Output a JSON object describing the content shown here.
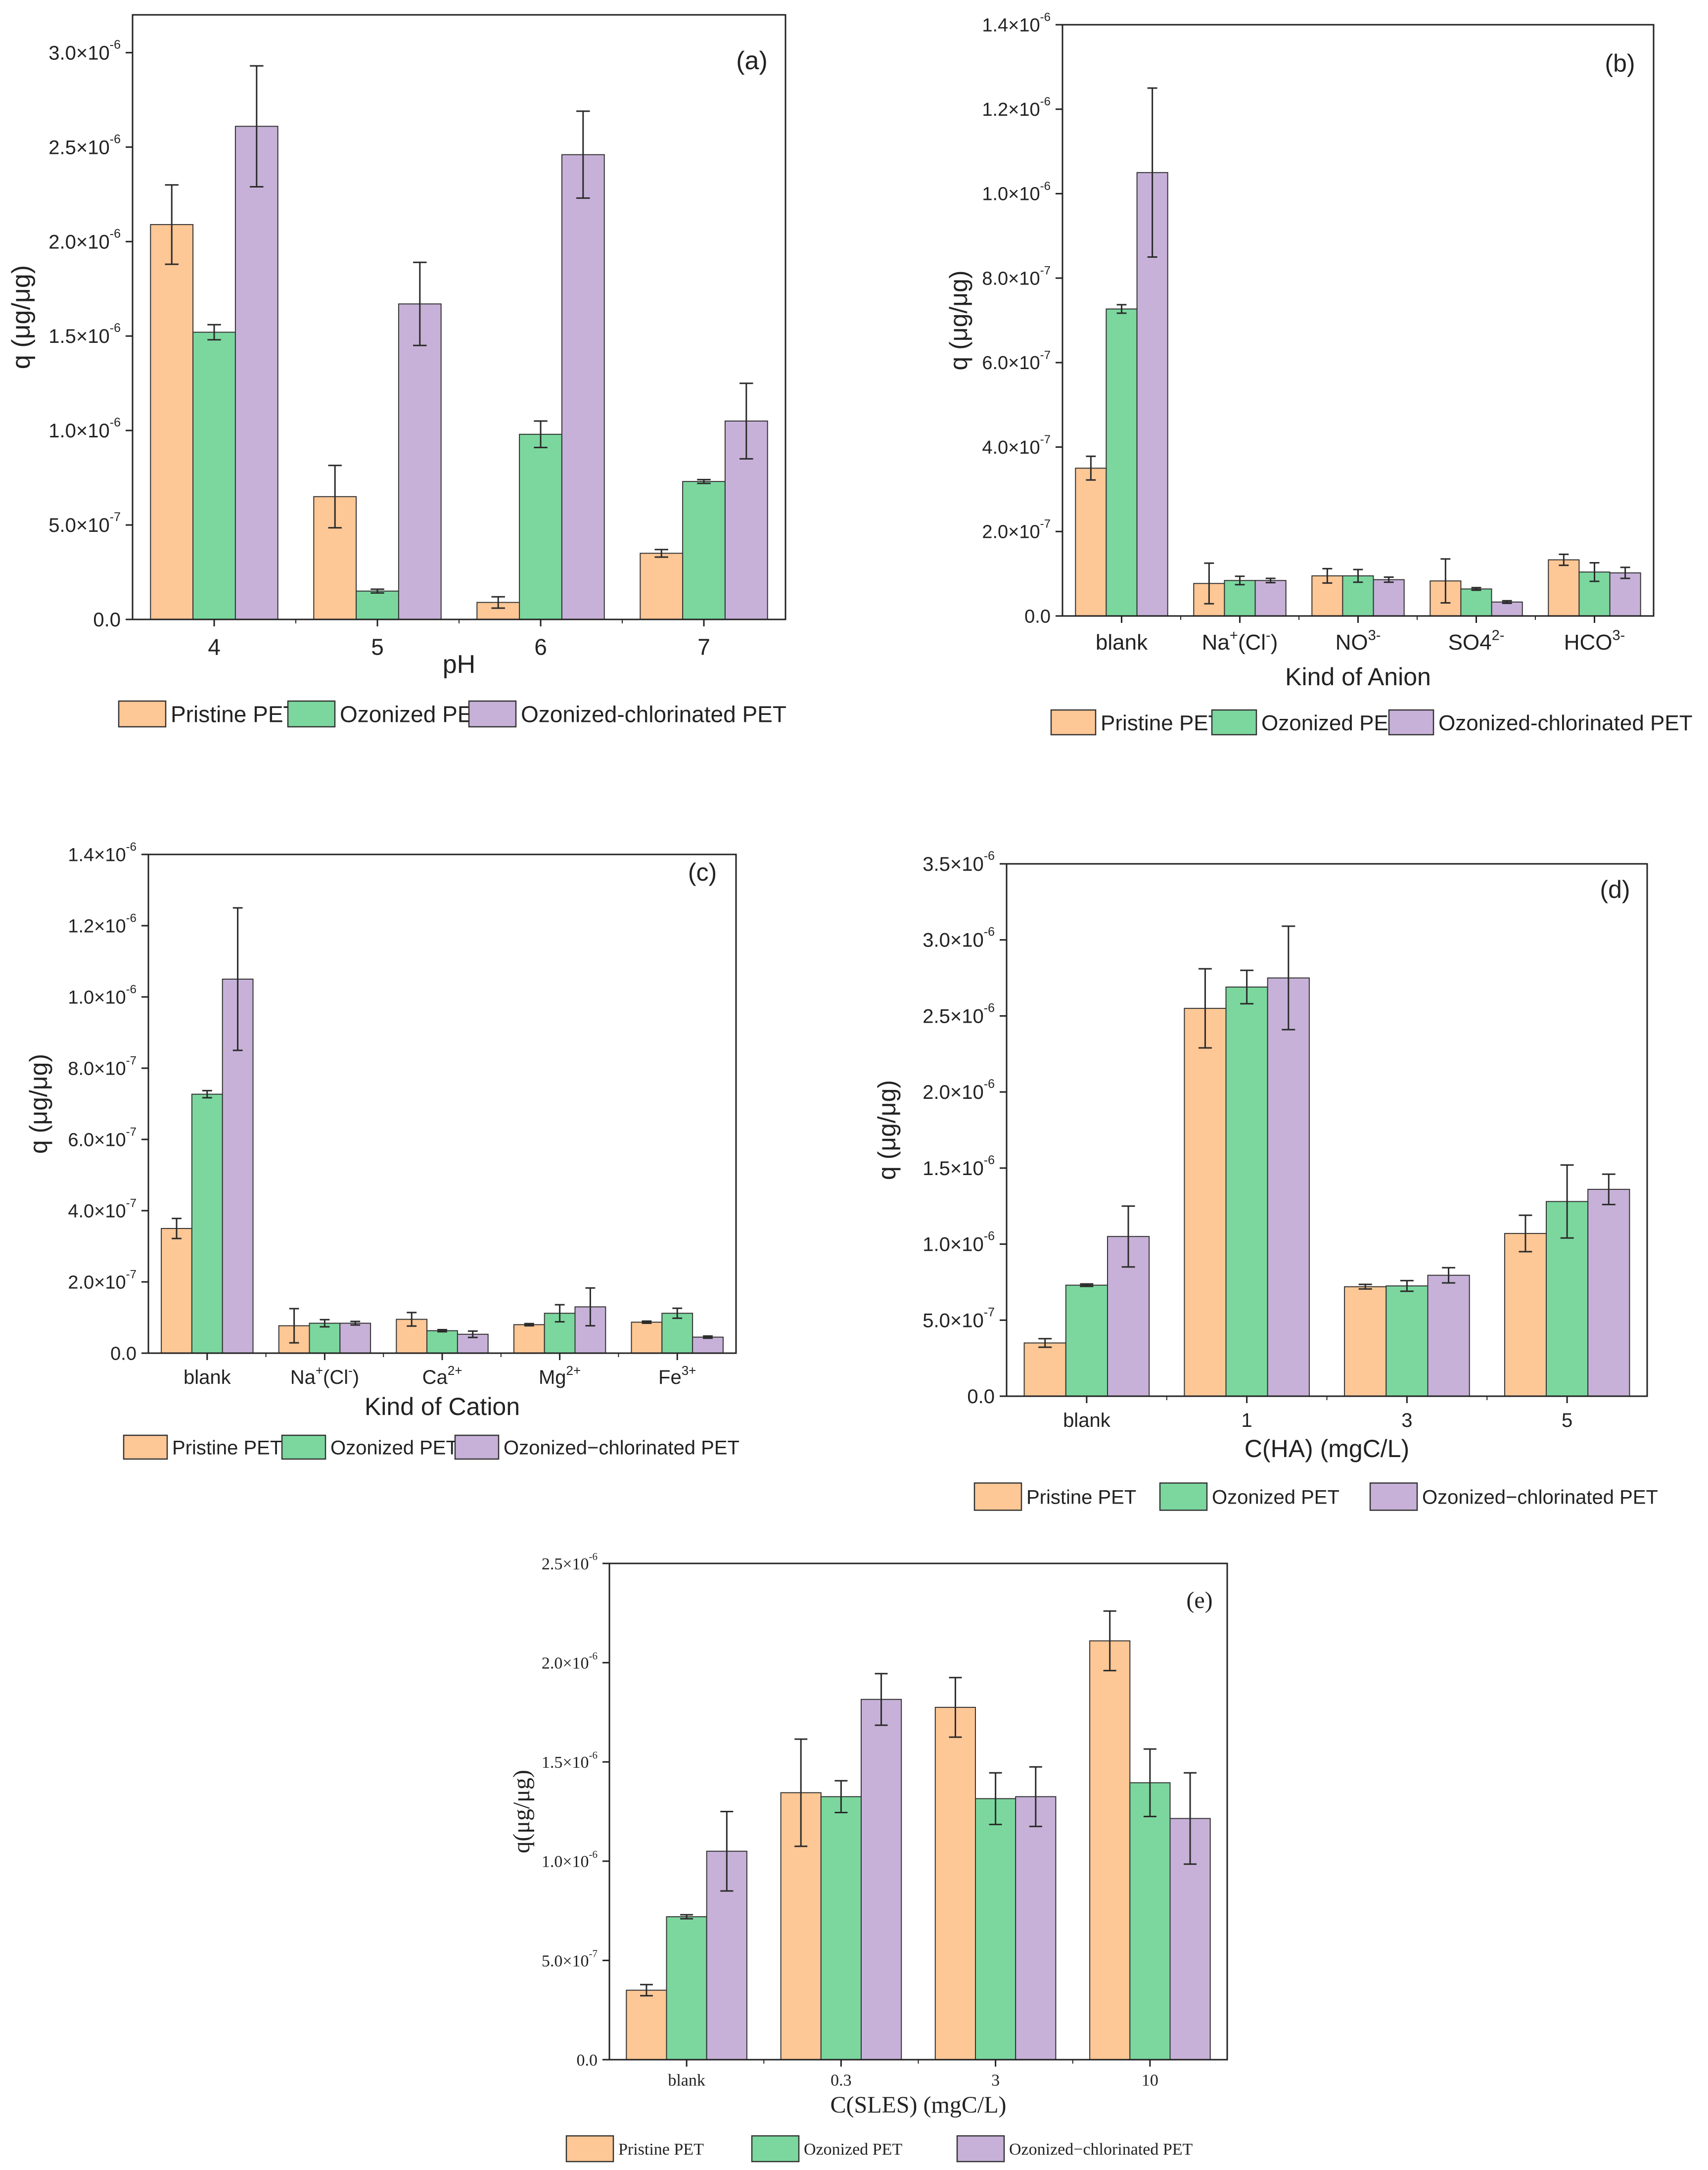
{
  "figure": {
    "series_names": [
      "Pristine PET",
      "Ozonized PET",
      "Ozonized-chlorinated PET"
    ],
    "series_names_alt": [
      "Pristine PET",
      "Ozonized PET",
      "Ozonized−chlorinated PET"
    ],
    "colors": {
      "pristine": "#FDC796",
      "ozonized": "#7BD79E",
      "chlorinated": "#C7B1D8",
      "error_bar": "#2a2a2a",
      "axis": "#222222"
    }
  },
  "chart_data": [
    {
      "id": "a",
      "type": "bar",
      "panel_label": "(a)",
      "xlabel": "pH",
      "ylabel": "q (μg/μg)",
      "categories": [
        "4",
        "5",
        "6",
        "7"
      ],
      "ylim": [
        0,
        3.2e-06
      ],
      "yticks": [
        0,
        5e-07,
        1e-06,
        1.5e-06,
        2e-06,
        2.5e-06,
        3e-06
      ],
      "ytick_labels": [
        {
          "m": "0.0",
          "e": ""
        },
        {
          "m": "5.0×10",
          "e": "-7"
        },
        {
          "m": "1.0×10",
          "e": "-6"
        },
        {
          "m": "1.5×10",
          "e": "-6"
        },
        {
          "m": "2.0×10",
          "e": "-6"
        },
        {
          "m": "2.5×10",
          "e": "-6"
        },
        {
          "m": "3.0×10",
          "e": "-6"
        }
      ],
      "series": [
        {
          "name": "Pristine PET",
          "values": [
            2.09e-06,
            6.5e-07,
            9e-08,
            3.5e-07
          ],
          "errors": [
            2.1e-07,
            1.65e-07,
            3e-08,
            2e-08
          ]
        },
        {
          "name": "Ozonized PET",
          "values": [
            1.52e-06,
            1.5e-07,
            9.8e-07,
            7.3e-07
          ],
          "errors": [
            4e-08,
            1e-08,
            7e-08,
            1e-08
          ]
        },
        {
          "name": "Ozonized-chlorinated PET",
          "values": [
            2.61e-06,
            1.67e-06,
            2.46e-06,
            1.05e-06
          ],
          "errors": [
            3.2e-07,
            2.2e-07,
            2.3e-07,
            2e-07
          ]
        }
      ]
    },
    {
      "id": "b",
      "type": "bar",
      "panel_label": "(b)",
      "xlabel": "Kind of Anion",
      "ylabel": "q (μg/μg)",
      "categories": [
        {
          "t": "blank"
        },
        {
          "t": "Na",
          "sup": "+",
          "t2": "(Cl",
          "sup2": "-",
          "t3": ")"
        },
        {
          "t": "NO",
          "sup": "3-"
        },
        {
          "t": "SO4",
          "sup": "2-"
        },
        {
          "t": "HCO",
          "sup": "3-"
        }
      ],
      "ylim": [
        0,
        1.4e-06
      ],
      "yticks": [
        0,
        2e-07,
        4e-07,
        6e-07,
        8e-07,
        1e-06,
        1.2e-06,
        1.4e-06
      ],
      "ytick_labels": [
        {
          "m": "0.0",
          "e": ""
        },
        {
          "m": "2.0×10",
          "e": "-7"
        },
        {
          "m": "4.0×10",
          "e": "-7"
        },
        {
          "m": "6.0×10",
          "e": "-7"
        },
        {
          "m": "8.0×10",
          "e": "-7"
        },
        {
          "m": "1.0×10",
          "e": "-6"
        },
        {
          "m": "1.2×10",
          "e": "-6"
        },
        {
          "m": "1.4×10",
          "e": "-6"
        }
      ],
      "series": [
        {
          "name": "Pristine PET",
          "values": [
            3.5e-07,
            7.7e-08,
            9.5e-08,
            8.3e-08,
            1.33e-07
          ],
          "errors": [
            2.8e-08,
            4.8e-08,
            1.7e-08,
            5.2e-08,
            1.3e-08
          ]
        },
        {
          "name": "Ozonized PET",
          "values": [
            7.27e-07,
            8.4e-08,
            9.5e-08,
            6.4e-08,
            1.04e-07
          ],
          "errors": [
            1e-08,
            1e-08,
            1.5e-08,
            3e-09,
            2.2e-08
          ]
        },
        {
          "name": "Ozonized-chlorinated PET",
          "values": [
            1.05e-06,
            8.4e-08,
            8.6e-08,
            3.3e-08,
            1.02e-07
          ],
          "errors": [
            2e-07,
            5e-09,
            6e-09,
            3e-09,
            1.3e-08
          ]
        }
      ]
    },
    {
      "id": "c",
      "type": "bar",
      "panel_label": "(c)",
      "xlabel": "Kind of Cation",
      "ylabel": "q (μg/μg)",
      "categories": [
        {
          "t": "blank"
        },
        {
          "t": "Na",
          "sup": "+",
          "t2": "(Cl",
          "sup2": "-",
          "t3": ")"
        },
        {
          "t": "Ca",
          "sup": "2+"
        },
        {
          "t": "Mg",
          "sup": "2+"
        },
        {
          "t": "Fe",
          "sup": "3+"
        }
      ],
      "ylim": [
        0,
        1.4e-06
      ],
      "yticks": [
        0,
        2e-07,
        4e-07,
        6e-07,
        8e-07,
        1e-06,
        1.2e-06,
        1.4e-06
      ],
      "ytick_labels": [
        {
          "m": "0.0",
          "e": ""
        },
        {
          "m": "2.0×10",
          "e": "-7"
        },
        {
          "m": "4.0×10",
          "e": "-7"
        },
        {
          "m": "6.0×10",
          "e": "-7"
        },
        {
          "m": "8.0×10",
          "e": "-7"
        },
        {
          "m": "1.0×10",
          "e": "-6"
        },
        {
          "m": "1.2×10",
          "e": "-6"
        },
        {
          "m": "1.4×10",
          "e": "-6"
        }
      ],
      "series": [
        {
          "name": "Pristine PET",
          "values": [
            3.5e-07,
            7.7e-08,
            9.5e-08,
            8e-08,
            8.7e-08
          ],
          "errors": [
            2.8e-08,
            4.8e-08,
            1.9e-08,
            3e-09,
            3e-09
          ]
        },
        {
          "name": "Ozonized PET",
          "values": [
            7.27e-07,
            8.4e-08,
            6.3e-08,
            1.12e-07,
            1.12e-07
          ],
          "errors": [
            1e-08,
            1e-08,
            3e-09,
            2.4e-08,
            1.4e-08
          ]
        },
        {
          "name": "Ozonized-chlorinated PET",
          "values": [
            1.05e-06,
            8.4e-08,
            5.3e-08,
            1.3e-07,
            4.5e-08
          ],
          "errors": [
            2e-07,
            5e-09,
            9e-09,
            5.3e-08,
            3e-09
          ]
        }
      ]
    },
    {
      "id": "d",
      "type": "bar",
      "panel_label": "(d)",
      "xlabel": "C(HA) (mgC/L)",
      "ylabel": "q (μg/μg)",
      "categories": [
        "blank",
        "1",
        "3",
        "5"
      ],
      "ylim": [
        0,
        3.5e-06
      ],
      "yticks": [
        0,
        5e-07,
        1e-06,
        1.5e-06,
        2e-06,
        2.5e-06,
        3e-06,
        3.5e-06
      ],
      "ytick_labels": [
        {
          "m": "0.0",
          "e": ""
        },
        {
          "m": "5.0×10",
          "e": "-7"
        },
        {
          "m": "1.0×10",
          "e": "-6"
        },
        {
          "m": "1.5×10",
          "e": "-6"
        },
        {
          "m": "2.0×10",
          "e": "-6"
        },
        {
          "m": "2.5×10",
          "e": "-6"
        },
        {
          "m": "3.0×10",
          "e": "-6"
        },
        {
          "m": "3.5×10",
          "e": "-6"
        }
      ],
      "series": [
        {
          "name": "Pristine PET",
          "values": [
            3.5e-07,
            2.55e-06,
            7.2e-07,
            1.07e-06
          ],
          "errors": [
            2.8e-08,
            2.6e-07,
            1.5e-08,
            1.2e-07
          ]
        },
        {
          "name": "Ozonized PET",
          "values": [
            7.3e-07,
            2.69e-06,
            7.25e-07,
            1.28e-06
          ],
          "errors": [
            8e-09,
            1.1e-07,
            3.5e-08,
            2.4e-07
          ]
        },
        {
          "name": "Ozonized-chlorinated PET",
          "values": [
            1.05e-06,
            2.75e-06,
            7.95e-07,
            1.36e-06
          ],
          "errors": [
            2e-07,
            3.4e-07,
            5e-08,
            1e-07
          ]
        }
      ]
    },
    {
      "id": "e",
      "type": "bar",
      "panel_label": "(e)",
      "xlabel": "C(SLES) (mgC/L)",
      "ylabel": "q(μg/μg)",
      "categories": [
        "blank",
        "0.3",
        "3",
        "10"
      ],
      "ylim": [
        0,
        2.5e-06
      ],
      "yticks": [
        0,
        5e-07,
        1e-06,
        1.5e-06,
        2e-06,
        2.5e-06
      ],
      "ytick_labels": [
        {
          "m": "0.0",
          "e": ""
        },
        {
          "m": "5.0×10",
          "e": "-7"
        },
        {
          "m": "1.0×10",
          "e": "-6"
        },
        {
          "m": "1.5×10",
          "e": "-6"
        },
        {
          "m": "2.0×10",
          "e": "-6"
        },
        {
          "m": "2.5×10",
          "e": "-6"
        }
      ],
      "series": [
        {
          "name": "Pristine PET",
          "values": [
            3.5e-07,
            1.345e-06,
            1.775e-06,
            2.11e-06
          ],
          "errors": [
            2.8e-08,
            2.7e-07,
            1.5e-07,
            1.5e-07
          ]
        },
        {
          "name": "Ozonized PET",
          "values": [
            7.2e-07,
            1.325e-06,
            1.315e-06,
            1.395e-06
          ],
          "errors": [
            1e-08,
            8e-08,
            1.3e-07,
            1.7e-07
          ]
        },
        {
          "name": "Ozonized-chlorinated PET",
          "values": [
            1.05e-06,
            1.815e-06,
            1.325e-06,
            1.215e-06
          ],
          "errors": [
            2e-07,
            1.3e-07,
            1.5e-07,
            2.3e-07
          ]
        }
      ]
    }
  ]
}
